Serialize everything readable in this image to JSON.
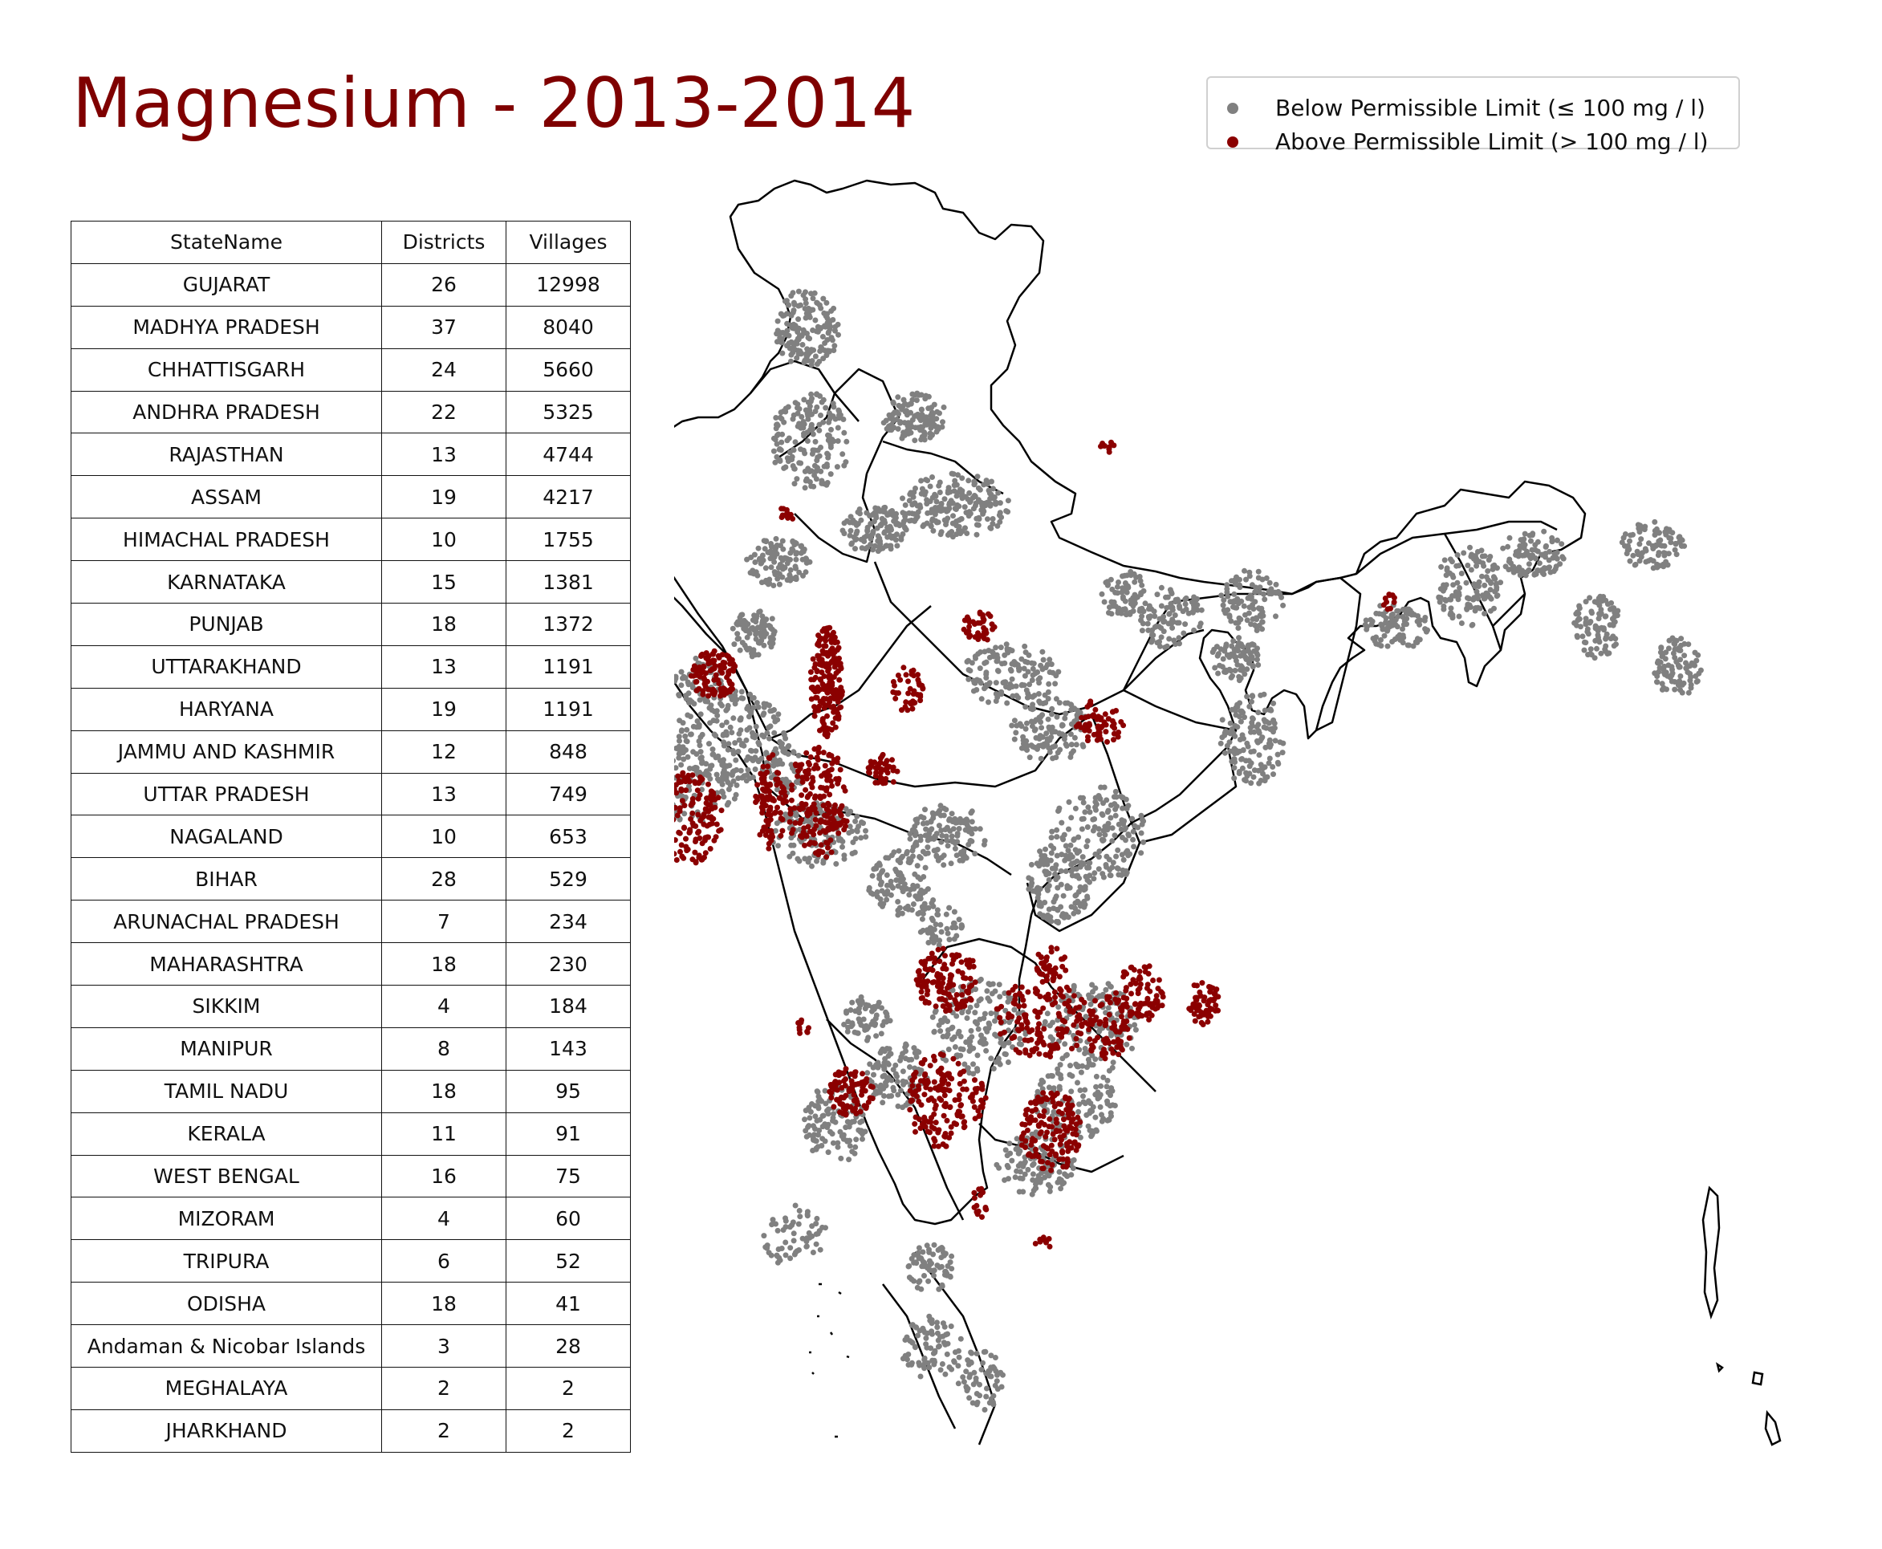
{
  "title": "Magnesium - 2013-2014",
  "legend": {
    "below": {
      "label": "Below Permissible Limit (≤ 100 mg / l)",
      "color": "#808080"
    },
    "above": {
      "label": "Above Permissible Limit (> 100 mg / l)",
      "color": "#8b0000"
    }
  },
  "table": {
    "headers": [
      "StateName",
      "Districts",
      "Villages"
    ],
    "rows": [
      [
        "GUJARAT",
        "26",
        "12998"
      ],
      [
        "MADHYA PRADESH",
        "37",
        "8040"
      ],
      [
        "CHHATTISGARH",
        "24",
        "5660"
      ],
      [
        "ANDHRA PRADESH",
        "22",
        "5325"
      ],
      [
        "RAJASTHAN",
        "13",
        "4744"
      ],
      [
        "ASSAM",
        "19",
        "4217"
      ],
      [
        "HIMACHAL PRADESH",
        "10",
        "1755"
      ],
      [
        "KARNATAKA",
        "15",
        "1381"
      ],
      [
        "PUNJAB",
        "18",
        "1372"
      ],
      [
        "UTTARAKHAND",
        "13",
        "1191"
      ],
      [
        "HARYANA",
        "19",
        "1191"
      ],
      [
        "JAMMU AND KASHMIR",
        "12",
        "848"
      ],
      [
        "UTTAR PRADESH",
        "13",
        "749"
      ],
      [
        "NAGALAND",
        "10",
        "653"
      ],
      [
        "BIHAR",
        "28",
        "529"
      ],
      [
        "ARUNACHAL PRADESH",
        "7",
        "234"
      ],
      [
        "MAHARASHTRA",
        "18",
        "230"
      ],
      [
        "SIKKIM",
        "4",
        "184"
      ],
      [
        "MANIPUR",
        "8",
        "143"
      ],
      [
        "TAMIL NADU",
        "18",
        "95"
      ],
      [
        "KERALA",
        "11",
        "91"
      ],
      [
        "WEST BENGAL",
        "16",
        "75"
      ],
      [
        "MIZORAM",
        "4",
        "60"
      ],
      [
        "TRIPURA",
        "6",
        "52"
      ],
      [
        "ODISHA",
        "18",
        "41"
      ],
      [
        "Andaman & Nicobar Islands",
        "3",
        "28"
      ],
      [
        "MEGHALAYA",
        "2",
        "2"
      ],
      [
        "JHARKHAND",
        "2",
        "2"
      ]
    ]
  },
  "map": {
    "border_color": "#000000",
    "fill_color": "#ffffff"
  }
}
